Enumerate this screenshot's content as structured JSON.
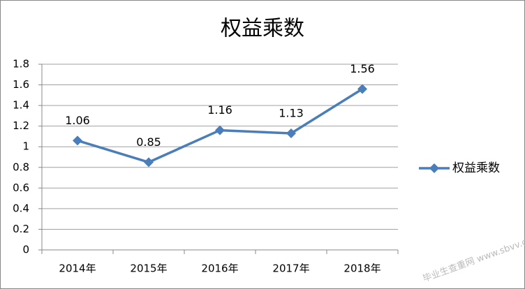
{
  "chart_data": {
    "type": "line",
    "title": "权益乘数",
    "categories": [
      "2014年",
      "2015年",
      "2016年",
      "2017年",
      "2018年"
    ],
    "series": [
      {
        "name": "权益乘数",
        "color": "#4a7ebb",
        "values": [
          1.06,
          0.85,
          1.16,
          1.13,
          1.56
        ]
      }
    ],
    "ylim": [
      0,
      1.8
    ],
    "yticks": [
      0,
      0.2,
      0.4,
      0.6,
      0.8,
      1,
      1.2,
      1.4,
      1.6,
      1.8
    ],
    "grid": true,
    "legend": "right",
    "watermark": "毕业生查重网 www.sbvv.com"
  }
}
